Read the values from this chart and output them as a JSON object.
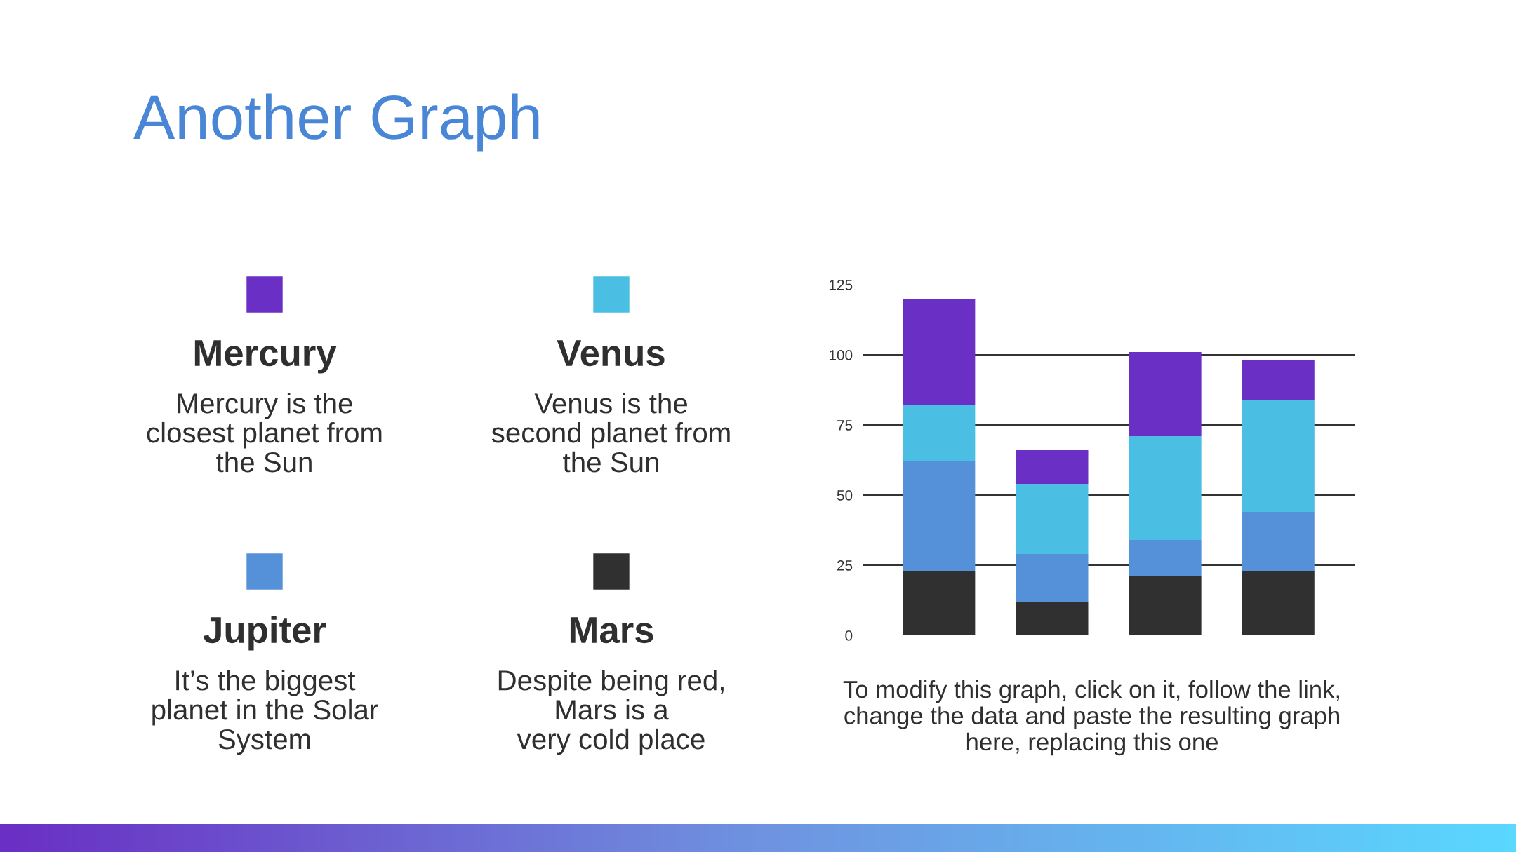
{
  "chart_data": {
    "type": "bar",
    "title": "Another Graph",
    "stacked": true,
    "categories": [
      null,
      null,
      null,
      null
    ],
    "series": [
      {
        "name": "Mars",
        "color": "#303030",
        "values": [
          23,
          12,
          21,
          23
        ]
      },
      {
        "name": "Jupiter",
        "color": "#5591d9",
        "values": [
          39,
          17,
          13,
          21
        ]
      },
      {
        "name": "Venus",
        "color": "#4abee3",
        "values": [
          20,
          25,
          37,
          40
        ]
      },
      {
        "name": "Mercury",
        "color": "#6a2fc4",
        "values": [
          38,
          12,
          30,
          14
        ]
      }
    ],
    "ylim": [
      0,
      125
    ],
    "yticks": [
      0,
      25,
      50,
      75,
      100,
      125
    ],
    "grid": "y",
    "legend": "left",
    "annotations": [
      "Mercury is the\nclosest planet from\nthe Sun",
      "Venus is the\nsecond planet from\nthe Sun",
      "It’s the biggest\nplanet in the Solar\nSystem",
      "Despite being red,\nMars is a\nvery cold place",
      "To modify this graph, click on it, follow the link,\nchange the data and paste the resulting graph\nhere, replacing this one"
    ]
  }
}
